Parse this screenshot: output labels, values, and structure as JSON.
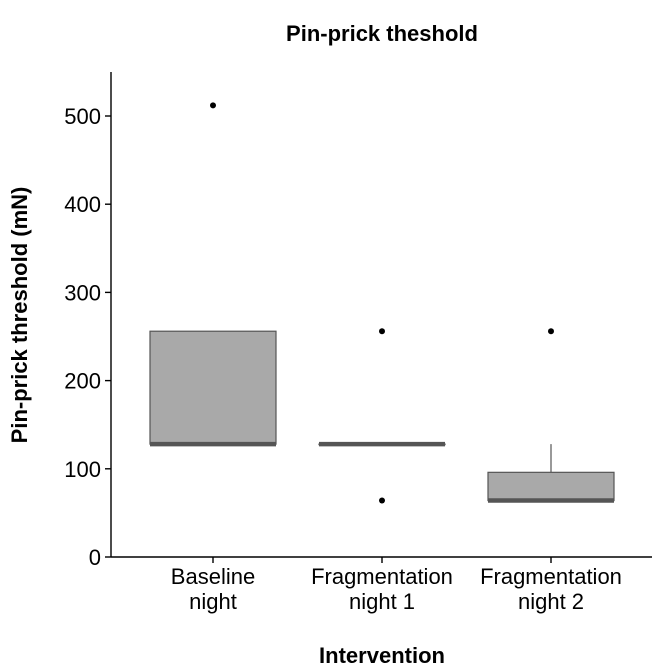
{
  "chart_data": {
    "type": "boxplot",
    "title": "Pin-prick theshold",
    "xlabel": "Intervention",
    "ylabel": "Pin-prick threshold (mN)",
    "ylim": [
      0,
      550
    ],
    "yticks": [
      0,
      100,
      200,
      300,
      400,
      500
    ],
    "grid": false,
    "legend": "none",
    "colors": {
      "box_fill": "#a9a9a9",
      "box_stroke": "#555555",
      "median": "#555555",
      "outlier": "#000000"
    },
    "categories": [
      {
        "lines": [
          "Baseline",
          "night"
        ]
      },
      {
        "lines": [
          "Fragmentation",
          "night 1"
        ]
      },
      {
        "lines": [
          "Fragmentation",
          "night 2"
        ]
      }
    ],
    "boxes": [
      {
        "whisker_low": 128,
        "q1": 128,
        "median": 128,
        "q3": 256,
        "whisker_high": 256,
        "outliers": [
          512
        ]
      },
      {
        "whisker_low": 128,
        "q1": 128,
        "median": 128,
        "q3": 128,
        "whisker_high": 128,
        "outliers": [
          64,
          256
        ]
      },
      {
        "whisker_low": 64,
        "q1": 64,
        "median": 64,
        "q3": 96,
        "whisker_high": 128,
        "outliers": [
          256
        ]
      }
    ]
  }
}
